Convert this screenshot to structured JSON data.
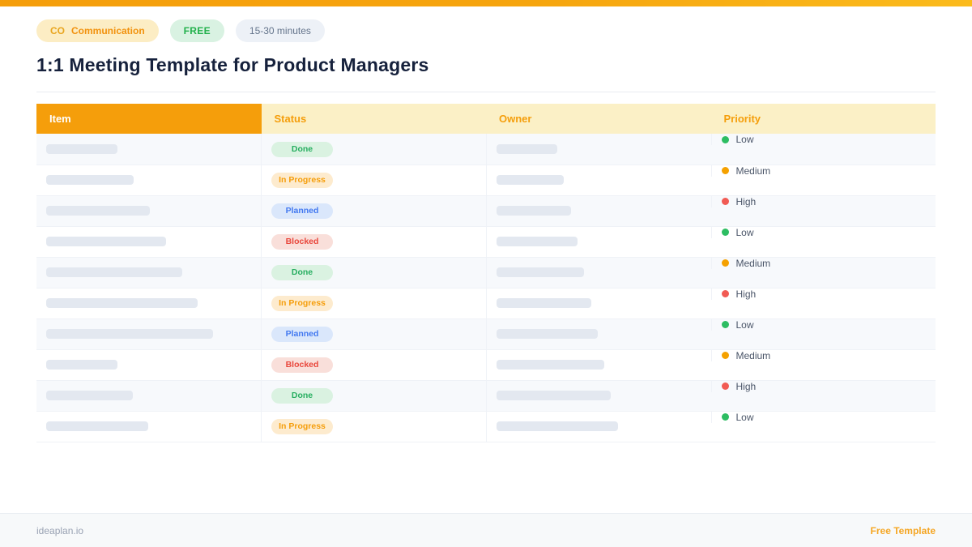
{
  "colors": {
    "topbar_gradient_start": "#F59E0B",
    "topbar_gradient_end": "#FBBB1C",
    "header_primary_bg": "#F59E0B",
    "header_secondary_bg": "#FBF0C6",
    "header_text_orange": "#F59E0B",
    "placeholder_bar": "#E3E8F0",
    "title_text": "#16213C",
    "accent_orange": "#F5A623"
  },
  "badges": [
    {
      "code": "CO",
      "label": "Communication"
    },
    {
      "label": "FREE"
    },
    {
      "label": "15-30 minutes"
    }
  ],
  "title": "1:1 Meeting Template for Product Managers",
  "table": {
    "columns": [
      "Item",
      "Status",
      "Owner",
      "Priority"
    ],
    "rows": [
      {
        "status": "Done",
        "priority": "Low",
        "item_bar_width": 88,
        "owner_bar_width": 75
      },
      {
        "status": "In Progress",
        "priority": "Medium",
        "item_bar_width": 108,
        "owner_bar_width": 83
      },
      {
        "status": "Planned",
        "priority": "High",
        "item_bar_width": 128,
        "owner_bar_width": 92
      },
      {
        "status": "Blocked",
        "priority": "Low",
        "item_bar_width": 148,
        "owner_bar_width": 100
      },
      {
        "status": "Done",
        "priority": "Medium",
        "item_bar_width": 168,
        "owner_bar_width": 108
      },
      {
        "status": "In Progress",
        "priority": "High",
        "item_bar_width": 187,
        "owner_bar_width": 117
      },
      {
        "status": "Planned",
        "priority": "Low",
        "item_bar_width": 206,
        "owner_bar_width": 125
      },
      {
        "status": "Blocked",
        "priority": "Medium",
        "item_bar_width": 88,
        "owner_bar_width": 133
      },
      {
        "status": "Done",
        "priority": "High",
        "item_bar_width": 107,
        "owner_bar_width": 141
      },
      {
        "status": "In Progress",
        "priority": "Low",
        "item_bar_width": 126,
        "owner_bar_width": 150
      }
    ]
  },
  "status_styles": {
    "Done": {
      "bg": "#DAF2E1",
      "fg": "#27AE60"
    },
    "In Progress": {
      "bg": "#FDEBCE",
      "fg": "#F59E0B"
    },
    "Planned": {
      "bg": "#DAE7FB",
      "fg": "#4379F0"
    },
    "Blocked": {
      "bg": "#F9DFDA",
      "fg": "#E9473C"
    }
  },
  "priority_styles": {
    "Low": "#2DBD62",
    "Medium": "#F5A100",
    "High": "#F15B54"
  },
  "footer": {
    "left": "ideaplan.io",
    "right": "Free Template"
  }
}
